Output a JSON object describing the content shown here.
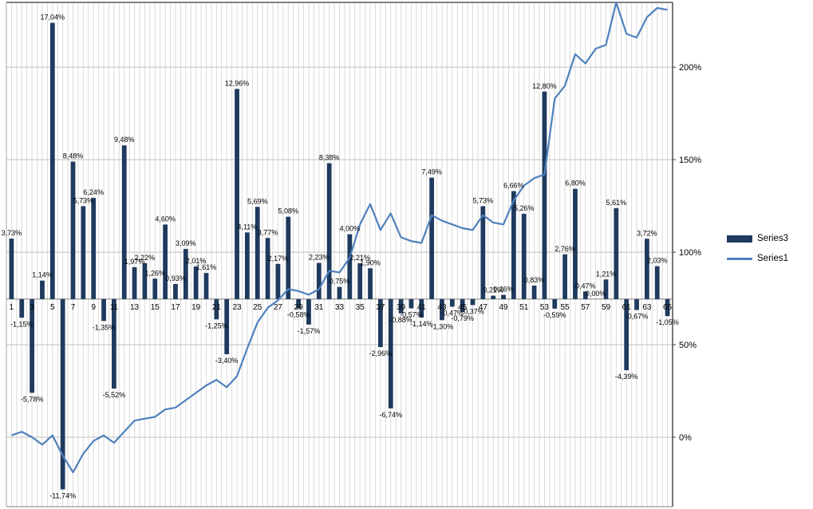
{
  "chart_data": {
    "type": "combo",
    "title": "",
    "n_categories": 65,
    "x_tick_labels": [
      "1",
      "3",
      "5",
      "7",
      "9",
      "11",
      "13",
      "15",
      "17",
      "19",
      "21",
      "23",
      "25",
      "27",
      "29",
      "31",
      "33",
      "35",
      "37",
      "39",
      "41",
      "43",
      "45",
      "47",
      "49",
      "51",
      "53",
      "55",
      "57",
      "59",
      "61",
      "63",
      "65"
    ],
    "label_format": "percent-comma-2dp",
    "grid": {
      "vertical_minor": true,
      "horizontal_major": true
    },
    "legend_position": "right",
    "bar_axis": {
      "visible": false,
      "range": [
        -12.8,
        18.3
      ]
    },
    "right_axis": {
      "range": [
        -37.5,
        235
      ],
      "tick_values": [
        0,
        50,
        100,
        150,
        200
      ],
      "tick_labels": [
        "0%",
        "50%",
        "100%",
        "150%",
        "200%"
      ]
    },
    "series": [
      {
        "name": "Series3",
        "type": "bar",
        "color": "#1F3A5E",
        "axis": "bars",
        "values": [
          3.73,
          -1.15,
          -5.78,
          1.14,
          17.04,
          -11.74,
          8.48,
          5.73,
          6.24,
          -1.35,
          -5.52,
          9.48,
          1.97,
          2.22,
          1.26,
          4.6,
          0.93,
          3.09,
          2.01,
          1.61,
          -1.25,
          -3.4,
          12.96,
          4.11,
          5.69,
          3.77,
          2.17,
          5.08,
          -0.58,
          -1.57,
          2.23,
          8.38,
          0.75,
          4.0,
          2.21,
          1.9,
          -2.96,
          -6.74,
          -0.88,
          -0.57,
          -1.14,
          7.49,
          -1.3,
          -0.47,
          -0.79,
          -0.37,
          5.73,
          0.21,
          0.26,
          6.66,
          5.26,
          0.83,
          12.8,
          -0.59,
          2.76,
          6.8,
          0.47,
          0.0,
          1.21,
          5.61,
          -4.39,
          -0.67,
          3.72,
          2.03,
          -1.05
        ]
      },
      {
        "name": "Series1",
        "type": "line",
        "color": "#4F81BD",
        "axis": "right",
        "values": [
          1,
          3,
          0,
          -4,
          1,
          -10,
          -19,
          -9,
          -2,
          1,
          -3,
          3,
          9,
          10,
          11,
          15,
          16,
          20,
          24,
          28,
          31,
          27,
          33,
          48,
          62,
          70,
          74,
          80,
          79,
          77,
          80,
          90,
          89,
          97,
          115,
          126,
          112,
          121,
          108,
          106,
          105,
          120,
          117,
          115,
          113,
          112,
          120,
          116,
          115,
          128,
          136,
          140,
          142,
          183,
          190,
          207,
          202,
          210,
          212,
          235,
          218,
          216,
          227,
          232,
          231
        ]
      }
    ],
    "colors": {
      "grid_vertical": "#DADADA",
      "grid_horizontal": "#C0C0C0",
      "axis_line": "#808080",
      "border": "#595959",
      "label_text": "#000000"
    }
  },
  "legend": {
    "series3_label": "Series3",
    "series1_label": "Series1"
  }
}
